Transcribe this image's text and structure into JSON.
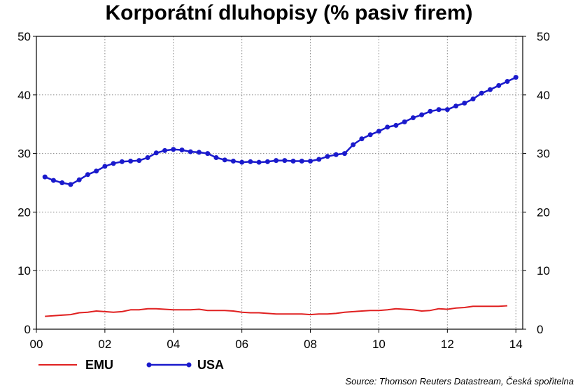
{
  "chart_data": {
    "type": "line",
    "title": "Korporátní dluhopisy (% pasiv firem)",
    "xlabel": "",
    "ylabel": "",
    "x_tick_labels": [
      "00",
      "02",
      "04",
      "06",
      "08",
      "10",
      "12",
      "14"
    ],
    "x_tick_values": [
      2000,
      2002,
      2004,
      2006,
      2008,
      2010,
      2012,
      2014
    ],
    "xlim": [
      2000,
      2014.2
    ],
    "y_ticks": [
      0,
      10,
      20,
      30,
      40,
      50
    ],
    "ylim": [
      0,
      50
    ],
    "grid": true,
    "secondary_y_axis": true,
    "legend_position": "bottom-left",
    "source": "Source: Thomson Reuters Datastream, Česká spořitelna",
    "series": [
      {
        "name": "EMU",
        "color": "#e02020",
        "markers": false,
        "x": [
          2000.25,
          2000.5,
          2000.75,
          2001.0,
          2001.25,
          2001.5,
          2001.75,
          2002.0,
          2002.25,
          2002.5,
          2002.75,
          2003.0,
          2003.25,
          2003.5,
          2003.75,
          2004.0,
          2004.25,
          2004.5,
          2004.75,
          2005.0,
          2005.25,
          2005.5,
          2005.75,
          2006.0,
          2006.25,
          2006.5,
          2006.75,
          2007.0,
          2007.25,
          2007.5,
          2007.75,
          2008.0,
          2008.25,
          2008.5,
          2008.75,
          2009.0,
          2009.25,
          2009.5,
          2009.75,
          2010.0,
          2010.25,
          2010.5,
          2010.75,
          2011.0,
          2011.25,
          2011.5,
          2011.75,
          2012.0,
          2012.25,
          2012.5,
          2012.75,
          2013.0,
          2013.25,
          2013.5,
          2013.75
        ],
        "y": [
          2.2,
          2.3,
          2.4,
          2.5,
          2.8,
          2.9,
          3.1,
          3.0,
          2.9,
          3.0,
          3.3,
          3.3,
          3.5,
          3.5,
          3.4,
          3.3,
          3.3,
          3.3,
          3.4,
          3.2,
          3.2,
          3.2,
          3.1,
          2.9,
          2.8,
          2.8,
          2.7,
          2.6,
          2.6,
          2.6,
          2.6,
          2.5,
          2.6,
          2.6,
          2.7,
          2.9,
          3.0,
          3.1,
          3.2,
          3.2,
          3.3,
          3.5,
          3.4,
          3.3,
          3.1,
          3.2,
          3.5,
          3.4,
          3.6,
          3.7,
          3.9,
          3.9,
          3.9,
          3.9,
          4.0
        ]
      },
      {
        "name": "USA",
        "color": "#1a1acc",
        "markers": true,
        "x": [
          2000.25,
          2000.5,
          2000.75,
          2001.0,
          2001.25,
          2001.5,
          2001.75,
          2002.0,
          2002.25,
          2002.5,
          2002.75,
          2003.0,
          2003.25,
          2003.5,
          2003.75,
          2004.0,
          2004.25,
          2004.5,
          2004.75,
          2005.0,
          2005.25,
          2005.5,
          2005.75,
          2006.0,
          2006.25,
          2006.5,
          2006.75,
          2007.0,
          2007.25,
          2007.5,
          2007.75,
          2008.0,
          2008.25,
          2008.5,
          2008.75,
          2009.0,
          2009.25,
          2009.5,
          2009.75,
          2010.0,
          2010.25,
          2010.5,
          2010.75,
          2011.0,
          2011.25,
          2011.5,
          2011.75,
          2012.0,
          2012.25,
          2012.5,
          2012.75,
          2013.0,
          2013.25,
          2013.5,
          2013.75,
          2014.0
        ],
        "y": [
          26.0,
          25.4,
          25.0,
          24.7,
          25.5,
          26.4,
          27.0,
          27.8,
          28.3,
          28.6,
          28.7,
          28.8,
          29.3,
          30.1,
          30.5,
          30.7,
          30.6,
          30.3,
          30.2,
          30.0,
          29.3,
          28.9,
          28.7,
          28.5,
          28.6,
          28.5,
          28.6,
          28.8,
          28.8,
          28.7,
          28.7,
          28.7,
          29.0,
          29.5,
          29.8,
          30.0,
          31.5,
          32.5,
          33.2,
          33.8,
          34.5,
          34.8,
          35.4,
          36.1,
          36.6,
          37.2,
          37.5,
          37.5,
          38.1,
          38.6,
          39.3,
          40.3,
          40.9,
          41.6,
          42.3,
          43.0
        ]
      }
    ]
  }
}
